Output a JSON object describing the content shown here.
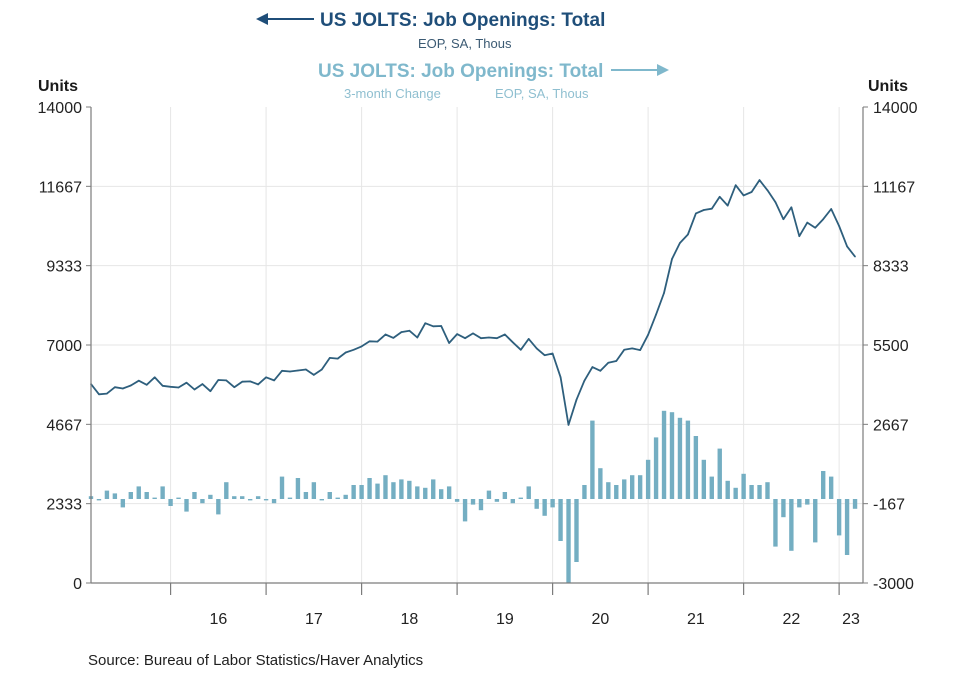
{
  "colors": {
    "level": "#2e5f7d",
    "change": "#74aec2",
    "grid": "#e6e6e6",
    "axis": "#7c7c7c",
    "title_dark": "#1f4e79",
    "title_light": "#7fb8cc"
  },
  "header": {
    "title_primary": "US JOLTS: Job Openings: Total",
    "subtitle_primary": "EOP, SA, Thous",
    "title_secondary": "US JOLTS: Job Openings: Total",
    "subtitle_secondary_a": "3-month Change",
    "subtitle_secondary_b": "EOP, SA, Thous",
    "arrow_primary": "left-arrow-icon",
    "arrow_secondary": "right-arrow-icon"
  },
  "footer": {
    "source": "Source:  Bureau of Labor Statistics/Haver Analytics"
  },
  "chart_data": {
    "type": "line",
    "ylabel_left": "Units",
    "ylabel_right": "Units",
    "x_ticks": [
      "16",
      "17",
      "18",
      "19",
      "20",
      "21",
      "22",
      "23"
    ],
    "left_axis": {
      "range": [
        0,
        14000
      ],
      "ticks": [
        "14000",
        "11667",
        "9333",
        "7000",
        "4667",
        "2333",
        "0"
      ]
    },
    "right_axis": {
      "range": [
        -3000,
        14000
      ],
      "ticks": [
        "14000",
        "11167",
        "8333",
        "5500",
        "2667",
        "-167",
        "-3000"
      ]
    },
    "grid": true,
    "x_start": "2015-03",
    "x_end": "2023-04",
    "series": [
      {
        "name": "US JOLTS: Job Openings: Total",
        "axis": "left",
        "kind": "line",
        "x": [
          "2015-03",
          "2015-04",
          "2015-05",
          "2015-06",
          "2015-07",
          "2015-08",
          "2015-09",
          "2015-10",
          "2015-11",
          "2015-12",
          "2016-01",
          "2016-02",
          "2016-03",
          "2016-04",
          "2016-05",
          "2016-06",
          "2016-07",
          "2016-08",
          "2016-09",
          "2016-10",
          "2016-11",
          "2016-12",
          "2017-01",
          "2017-02",
          "2017-03",
          "2017-04",
          "2017-05",
          "2017-06",
          "2017-07",
          "2017-08",
          "2017-09",
          "2017-10",
          "2017-11",
          "2017-12",
          "2018-01",
          "2018-02",
          "2018-03",
          "2018-04",
          "2018-05",
          "2018-06",
          "2018-07",
          "2018-08",
          "2018-09",
          "2018-10",
          "2018-11",
          "2018-12",
          "2019-01",
          "2019-02",
          "2019-03",
          "2019-04",
          "2019-05",
          "2019-06",
          "2019-07",
          "2019-08",
          "2019-09",
          "2019-10",
          "2019-11",
          "2019-12",
          "2020-01",
          "2020-02",
          "2020-03",
          "2020-04",
          "2020-05",
          "2020-06",
          "2020-07",
          "2020-08",
          "2020-09",
          "2020-10",
          "2020-11",
          "2020-12",
          "2021-01",
          "2021-02",
          "2021-03",
          "2021-04",
          "2021-05",
          "2021-06",
          "2021-07",
          "2021-08",
          "2021-09",
          "2021-10",
          "2021-11",
          "2021-12",
          "2022-01",
          "2022-02",
          "2022-03",
          "2022-04",
          "2022-05",
          "2022-06",
          "2022-07",
          "2022-08",
          "2022-09",
          "2022-10",
          "2022-11",
          "2022-12",
          "2023-01",
          "2023-02",
          "2023-03"
        ],
        "values": [
          5850,
          5550,
          5570,
          5760,
          5720,
          5810,
          5950,
          5830,
          6050,
          5800,
          5770,
          5750,
          5890,
          5690,
          5850,
          5640,
          5970,
          5960,
          5760,
          5920,
          5930,
          5840,
          6050,
          5960,
          6240,
          6220,
          6250,
          6280,
          6120,
          6280,
          6620,
          6600,
          6780,
          6860,
          6960,
          7110,
          7100,
          7310,
          7210,
          7380,
          7420,
          7220,
          7640,
          7550,
          7560,
          7060,
          7320,
          7200,
          7340,
          7200,
          7220,
          7200,
          7310,
          7080,
          6860,
          7180,
          6900,
          6700,
          6750,
          6050,
          4650,
          5390,
          5950,
          6350,
          6240,
          6480,
          6530,
          6860,
          6900,
          6850,
          7300,
          7900,
          8530,
          9530,
          10000,
          10250,
          10870,
          10970,
          11010,
          11360,
          11100,
          11700,
          11400,
          11500,
          11850,
          11550,
          11200,
          10700,
          11050,
          10200,
          10600,
          10450,
          10700,
          11000,
          10500,
          9900,
          9600
        ]
      },
      {
        "name": "US JOLTS: Job Openings: Total",
        "subtitle": "3-month Change",
        "axis": "right",
        "kind": "bar",
        "x": [
          "2015-03",
          "2015-04",
          "2015-05",
          "2015-06",
          "2015-07",
          "2015-08",
          "2015-09",
          "2015-10",
          "2015-11",
          "2015-12",
          "2016-01",
          "2016-02",
          "2016-03",
          "2016-04",
          "2016-05",
          "2016-06",
          "2016-07",
          "2016-08",
          "2016-09",
          "2016-10",
          "2016-11",
          "2016-12",
          "2017-01",
          "2017-02",
          "2017-03",
          "2017-04",
          "2017-05",
          "2017-06",
          "2017-07",
          "2017-08",
          "2017-09",
          "2017-10",
          "2017-11",
          "2017-12",
          "2018-01",
          "2018-02",
          "2018-03",
          "2018-04",
          "2018-05",
          "2018-06",
          "2018-07",
          "2018-08",
          "2018-09",
          "2018-10",
          "2018-11",
          "2018-12",
          "2019-01",
          "2019-02",
          "2019-03",
          "2019-04",
          "2019-05",
          "2019-06",
          "2019-07",
          "2019-08",
          "2019-09",
          "2019-10",
          "2019-11",
          "2019-12",
          "2020-01",
          "2020-02",
          "2020-03",
          "2020-04",
          "2020-05",
          "2020-06",
          "2020-07",
          "2020-08",
          "2020-09",
          "2020-10",
          "2020-11",
          "2020-12",
          "2021-01",
          "2021-02",
          "2021-03",
          "2021-04",
          "2021-05",
          "2021-06",
          "2021-07",
          "2021-08",
          "2021-09",
          "2021-10",
          "2021-11",
          "2021-12",
          "2022-01",
          "2022-02",
          "2022-03",
          "2022-04",
          "2022-05",
          "2022-06",
          "2022-07",
          "2022-08",
          "2022-09",
          "2022-10",
          "2022-11",
          "2022-12",
          "2023-01",
          "2023-02",
          "2023-03"
        ],
        "values": [
          100,
          -50,
          300,
          200,
          -300,
          250,
          450,
          250,
          50,
          450,
          -250,
          50,
          -450,
          250,
          -150,
          150,
          -550,
          600,
          100,
          100,
          -50,
          100,
          -50,
          -150,
          800,
          50,
          750,
          250,
          600,
          -50,
          250,
          50,
          150,
          500,
          500,
          750,
          550,
          850,
          600,
          700,
          650,
          450,
          400,
          700,
          350,
          450,
          -100,
          -800,
          -200,
          -400,
          300,
          -100,
          250,
          -150,
          50,
          450,
          -350,
          -600,
          -300,
          -1500,
          -3000,
          -2250,
          500,
          2800,
          1100,
          600,
          500,
          700,
          850,
          850,
          1400,
          2200,
          3150,
          3100,
          2900,
          2800,
          2250,
          1400,
          800,
          1800,
          650,
          400,
          900,
          500,
          500,
          600,
          -1700,
          -650,
          -1850,
          -300,
          -200,
          -1550,
          1000,
          800,
          -1300,
          -2000,
          -350
        ]
      }
    ]
  }
}
